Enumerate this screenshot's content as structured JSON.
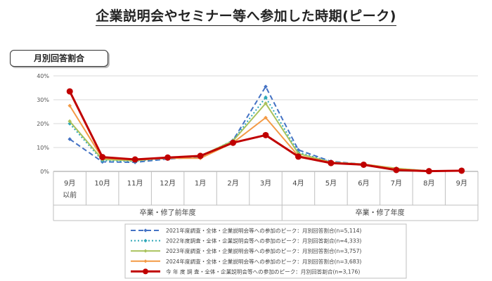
{
  "title": "企業説明会やセミナー等へ参加した時期(ピーク)",
  "badge": "月別回答割合",
  "chart_data": {
    "type": "line",
    "categories": [
      "9月\n以前",
      "10月",
      "11月",
      "12月",
      "1月",
      "2月",
      "3月",
      "4月",
      "5月",
      "6月",
      "7月",
      "8月",
      "9月"
    ],
    "groups": [
      {
        "label": "卒業・修了前年度",
        "from": 0,
        "to": 6
      },
      {
        "label": "卒業・修了年度",
        "from": 7,
        "to": 12
      }
    ],
    "ylim": [
      0,
      40
    ],
    "yticks": [
      "0%",
      "10%",
      "20%",
      "30%",
      "40%"
    ],
    "grid": true,
    "legend_position": "bottom",
    "series": [
      {
        "name": "2021年度調査・全体・企業説明会等への参加のピーク：月別回答割合(n=5,114)",
        "color": "#4472c4",
        "style": "dash",
        "values": [
          13.5,
          4.0,
          3.8,
          5.2,
          6.0,
          13.0,
          35.5,
          9.0,
          4.2,
          3.0,
          1.2,
          0.2,
          0.3
        ]
      },
      {
        "name": "2022年度調査・全体・企業説明会等への参加のピーク：月別回答割合(n=4,333)",
        "color": "#2ea7b8",
        "style": "dot",
        "values": [
          20.0,
          4.5,
          4.2,
          5.5,
          6.2,
          13.0,
          31.0,
          8.0,
          4.0,
          3.0,
          1.0,
          0.2,
          0.3
        ]
      },
      {
        "name": "2023年度調査・全体・企業説明会等への参加のピーク：月別回答割合(n=3,757)",
        "color": "#a9c25b",
        "style": "solid",
        "values": [
          21.0,
          5.0,
          4.5,
          5.8,
          6.5,
          12.8,
          28.5,
          7.5,
          3.8,
          3.0,
          1.3,
          0.2,
          0.3
        ]
      },
      {
        "name": "2024年度調査・全体・企業説明会等への参加のピーク：月別回答割合(n=3,683)",
        "color": "#f39a45",
        "style": "solid",
        "values": [
          27.5,
          5.5,
          4.8,
          5.5,
          5.5,
          12.0,
          22.5,
          6.5,
          3.8,
          3.0,
          1.0,
          0.2,
          0.3
        ]
      },
      {
        "name": "今 年 度 調 査・全体・企業説明会等への参加のピーク：月別回答割合(n=3,176)",
        "color": "#c00000",
        "style": "bold",
        "values": [
          33.5,
          6.0,
          5.0,
          5.8,
          6.5,
          12.0,
          15.2,
          6.2,
          3.5,
          2.8,
          0.6,
          0.1,
          0.3
        ]
      }
    ]
  }
}
